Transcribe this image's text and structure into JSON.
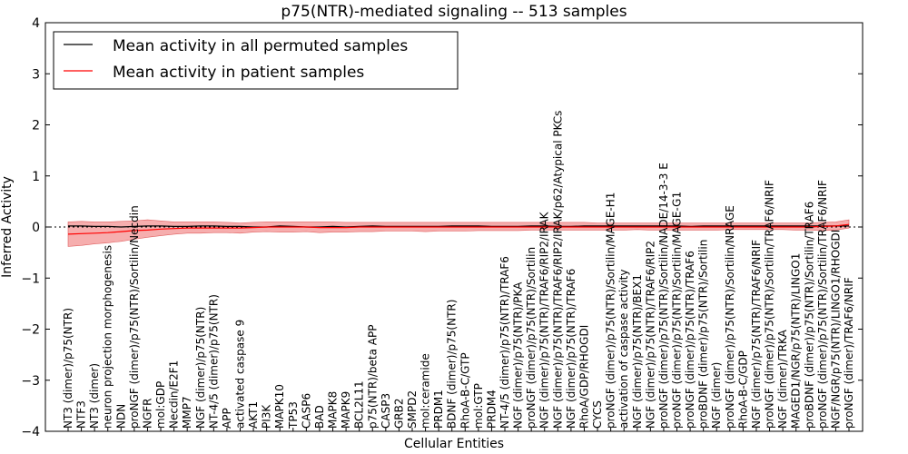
{
  "chart_data": {
    "type": "line",
    "title": "p75(NTR)-mediated signaling -- 513 samples",
    "xlabel": "Cellular Entities",
    "ylabel": "Inferred Activity",
    "ylim": [
      -4,
      4
    ],
    "yticks": [
      "−4",
      "−3",
      "−2",
      "−1",
      "0",
      "1",
      "2",
      "3",
      "4"
    ],
    "grid": false,
    "legend_position": "top-left",
    "categories": [
      "NT3 (dimer)/p75(NTR)",
      "NTF3",
      "NT3 (dimer)",
      "neuron projection morphogenesis",
      "NDN",
      "proNGF (dimer)/p75(NTR)/Sortilin/Necdin",
      "NGFR",
      "mol:GDP",
      "Necdin/E2F1",
      "MMP7",
      "NGF (dimer)/p75(NTR)",
      "NT-4/5 (dimer)/p75(NTR)",
      "APP",
      "activated caspase 9",
      "AKT1",
      "PI3K",
      "MAPK10",
      "TP53",
      "CASP6",
      "BAD",
      "MAPK8",
      "MAPK9",
      "BCL2L11",
      "p75(NTR)/beta APP",
      "CASP3",
      "GRB2",
      "SMPD2",
      "mol:ceramide",
      "PRDM1",
      "BDNF (dimer)/p75(NTR)",
      "RhoA-B-C/GTP",
      "mol:GTP",
      "PRDM4",
      "NT-4/5 (dimer)/p75(NTR)/TRAF6",
      "NGF (dimer)/p75(NTR)/PKA",
      "proNGF (dimer)/p75(NTR)/Sortilin",
      "NGF (dimer)/p75(NTR)/TRAF6/RIP2/IRAK",
      "NGF (dimer)/p75(NTR)/TRAF6/RIP2/IRAK/p62/Atypical PKCs",
      "NGF (dimer)/p75(NTR)/TRAF6",
      "RhoA/GDP/RHOGDI",
      "CYCS",
      "proNGF (dimer)/p75(NTR)/Sortilin/MAGE-H1",
      "activation of caspase activity",
      "NGF (dimer)/p75(NTR)/BEX1",
      "NGF (dimer)/p75(NTR)/TRAF6/RIP2",
      "proNGF (dimer)/p75(NTR)/Sortilin/NADE/14-3-3 E",
      "proNGF (dimer)/p75(NTR)/Sortilin/MAGE-G1",
      "proNGF (dimer)/p75(NTR)/TRAF6",
      "proBDNF (dimer)/p75(NTR)/Sortilin",
      "NGF (dimer)",
      "proNGF (dimer)/p75(NTR)/Sortilin/NRAGE",
      "RhoA-B-C/GDP",
      "NGF (dimer)/p75(NTR)/TRAF6/NRIF",
      "proNGF (dimer)/p75(NTR)/Sortilin/TRAF6/NRIF",
      "NGF (dimer)/TRKA",
      "MAGED1/NGR/p75(NTR)/LINGO1",
      "proBDNF (dimer)/p75(NTR)/Sortilin/TRAF6",
      "proNGF (dimer)/p75(NTR)/Sortilin/TRAF6/NRIF",
      "NGF/NGR/p75(NTR)/LINGO1/RHOGDI",
      "proNGF (dimer)/TRAF6/NRIF"
    ],
    "series": [
      {
        "name": "Mean activity in all permuted samples",
        "color": "#000000",
        "values": [
          0.02,
          0.02,
          0.01,
          0.01,
          0.0,
          0.01,
          0.02,
          0.02,
          0.01,
          0.01,
          0.02,
          0.02,
          0.01,
          0.01,
          0.0,
          0.0,
          0.02,
          0.01,
          0.0,
          0.0,
          0.01,
          0.0,
          0.01,
          0.02,
          0.01,
          0.01,
          0.01,
          0.01,
          0.01,
          0.02,
          0.02,
          0.02,
          0.01,
          0.01,
          0.01,
          0.02,
          0.02,
          0.01,
          0.01,
          0.02,
          0.02,
          0.02,
          0.02,
          0.02,
          0.02,
          0.02,
          0.02,
          0.01,
          0.02,
          0.02,
          0.02,
          0.02,
          0.02,
          0.02,
          0.02,
          0.02,
          0.02,
          0.02,
          0.02,
          0.02
        ]
      },
      {
        "name": "Mean activity in patient samples",
        "color": "#ff0000",
        "band_color": "#f4a0a0",
        "values": [
          -0.14,
          -0.13,
          -0.12,
          -0.11,
          -0.09,
          -0.07,
          -0.06,
          -0.04,
          -0.03,
          -0.02,
          -0.02,
          -0.02,
          -0.02,
          -0.02,
          -0.01,
          0.0,
          0.0,
          0.0,
          0.0,
          -0.01,
          -0.01,
          -0.01,
          0.0,
          0.0,
          0.0,
          0.0,
          0.0,
          0.0,
          0.0,
          0.0,
          0.0,
          0.0,
          0.0,
          0.0,
          0.0,
          0.0,
          0.0,
          0.0,
          0.0,
          0.0,
          0.0,
          0.0,
          0.0,
          0.0,
          0.0,
          0.0,
          0.0,
          0.0,
          0.0,
          0.0,
          0.0,
          0.0,
          0.0,
          0.0,
          0.0,
          0.0,
          0.0,
          0.01,
          0.02,
          0.05
        ],
        "band_lower": [
          -0.38,
          -0.36,
          -0.33,
          -0.31,
          -0.28,
          -0.24,
          -0.2,
          -0.17,
          -0.14,
          -0.12,
          -0.12,
          -0.11,
          -0.11,
          -0.12,
          -0.1,
          -0.09,
          -0.1,
          -0.1,
          -0.09,
          -0.11,
          -0.1,
          -0.1,
          -0.09,
          -0.09,
          -0.08,
          -0.08,
          -0.08,
          -0.09,
          -0.08,
          -0.08,
          -0.08,
          -0.07,
          -0.07,
          -0.07,
          -0.07,
          -0.06,
          -0.06,
          -0.06,
          -0.06,
          -0.06,
          -0.06,
          -0.06,
          -0.06,
          -0.05,
          -0.06,
          -0.06,
          -0.06,
          -0.06,
          -0.06,
          -0.06,
          -0.05,
          -0.05,
          -0.05,
          -0.05,
          -0.05,
          -0.06,
          -0.06,
          -0.07,
          -0.06,
          -0.02
        ],
        "band_upper": [
          0.1,
          0.11,
          0.1,
          0.1,
          0.11,
          0.12,
          0.14,
          0.12,
          0.1,
          0.1,
          0.1,
          0.1,
          0.09,
          0.08,
          0.09,
          0.1,
          0.1,
          0.1,
          0.1,
          0.1,
          0.1,
          0.09,
          0.09,
          0.09,
          0.09,
          0.09,
          0.09,
          0.09,
          0.09,
          0.09,
          0.09,
          0.09,
          0.09,
          0.09,
          0.09,
          0.09,
          0.09,
          0.09,
          0.09,
          0.09,
          0.08,
          0.08,
          0.08,
          0.08,
          0.08,
          0.08,
          0.08,
          0.08,
          0.08,
          0.08,
          0.08,
          0.08,
          0.08,
          0.08,
          0.08,
          0.08,
          0.08,
          0.09,
          0.1,
          0.14
        ]
      }
    ]
  }
}
